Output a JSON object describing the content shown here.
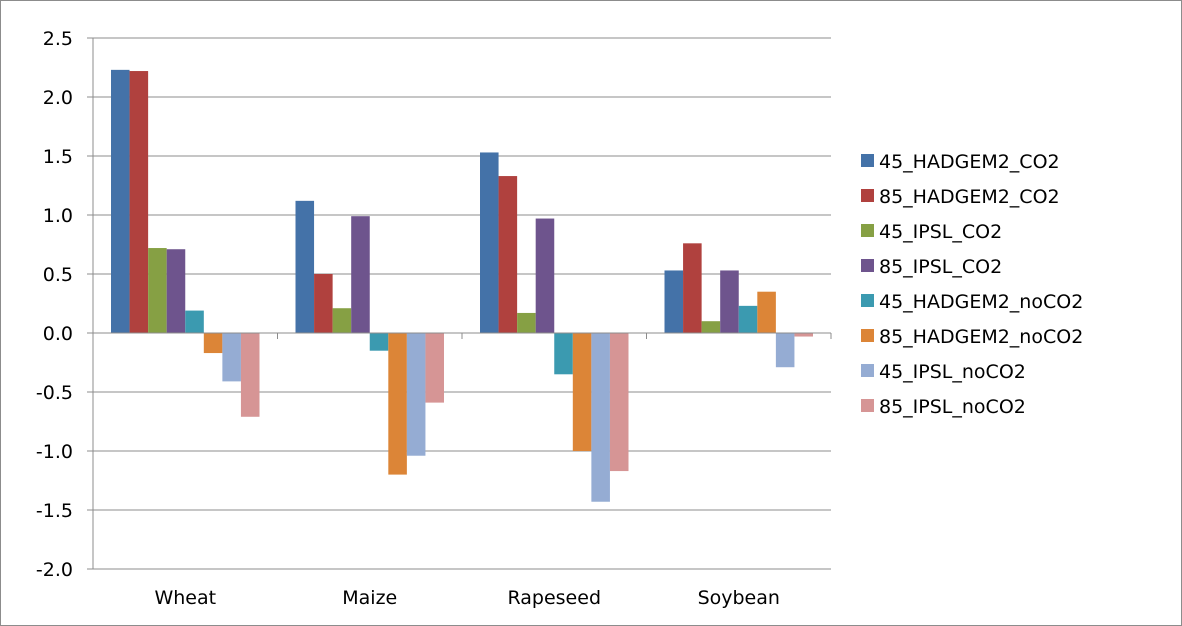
{
  "chart_data": {
    "type": "bar",
    "title": "",
    "xlabel": "",
    "ylabel": "",
    "categories": [
      "Wheat",
      "Maize",
      "Rapeseed",
      "Soybean"
    ],
    "ylim": [
      -2.0,
      2.5
    ],
    "yticks": [
      2.5,
      2.0,
      1.5,
      1.0,
      0.5,
      0.0,
      -0.5,
      -1.0,
      -1.5,
      -2.0
    ],
    "ytick_labels": [
      "2.5",
      "2.0",
      "1.5",
      "1.0",
      "0.5",
      "0.0",
      "-0.5",
      "-1.0",
      "-1.5",
      "-2.0"
    ],
    "grid": true,
    "legend_position": "right",
    "series": [
      {
        "name": "45_HADGEM2_CO2",
        "color": "#4472A8",
        "values": [
          2.23,
          1.12,
          1.53,
          0.53
        ]
      },
      {
        "name": "85_HADGEM2_CO2",
        "color": "#B0413E",
        "values": [
          2.22,
          0.5,
          1.33,
          0.76
        ]
      },
      {
        "name": "45_IPSL_CO2",
        "color": "#86A044",
        "values": [
          0.72,
          0.21,
          0.17,
          0.1
        ]
      },
      {
        "name": "85_IPSL_CO2",
        "color": "#6E548D",
        "values": [
          0.71,
          0.99,
          0.97,
          0.53
        ]
      },
      {
        "name": "45_HADGEM2_noCO2",
        "color": "#3B9AB0",
        "values": [
          0.19,
          -0.15,
          -0.35,
          0.23
        ]
      },
      {
        "name": "85_HADGEM2_noCO2",
        "color": "#DC8537",
        "values": [
          -0.17,
          -1.2,
          -1.0,
          0.35
        ]
      },
      {
        "name": "45_IPSL_noCO2",
        "color": "#95ACD3",
        "values": [
          -0.41,
          -1.04,
          -1.43,
          -0.29
        ]
      },
      {
        "name": "85_IPSL_noCO2",
        "color": "#D69595",
        "values": [
          -0.71,
          -0.59,
          -1.17,
          -0.03
        ]
      }
    ]
  }
}
